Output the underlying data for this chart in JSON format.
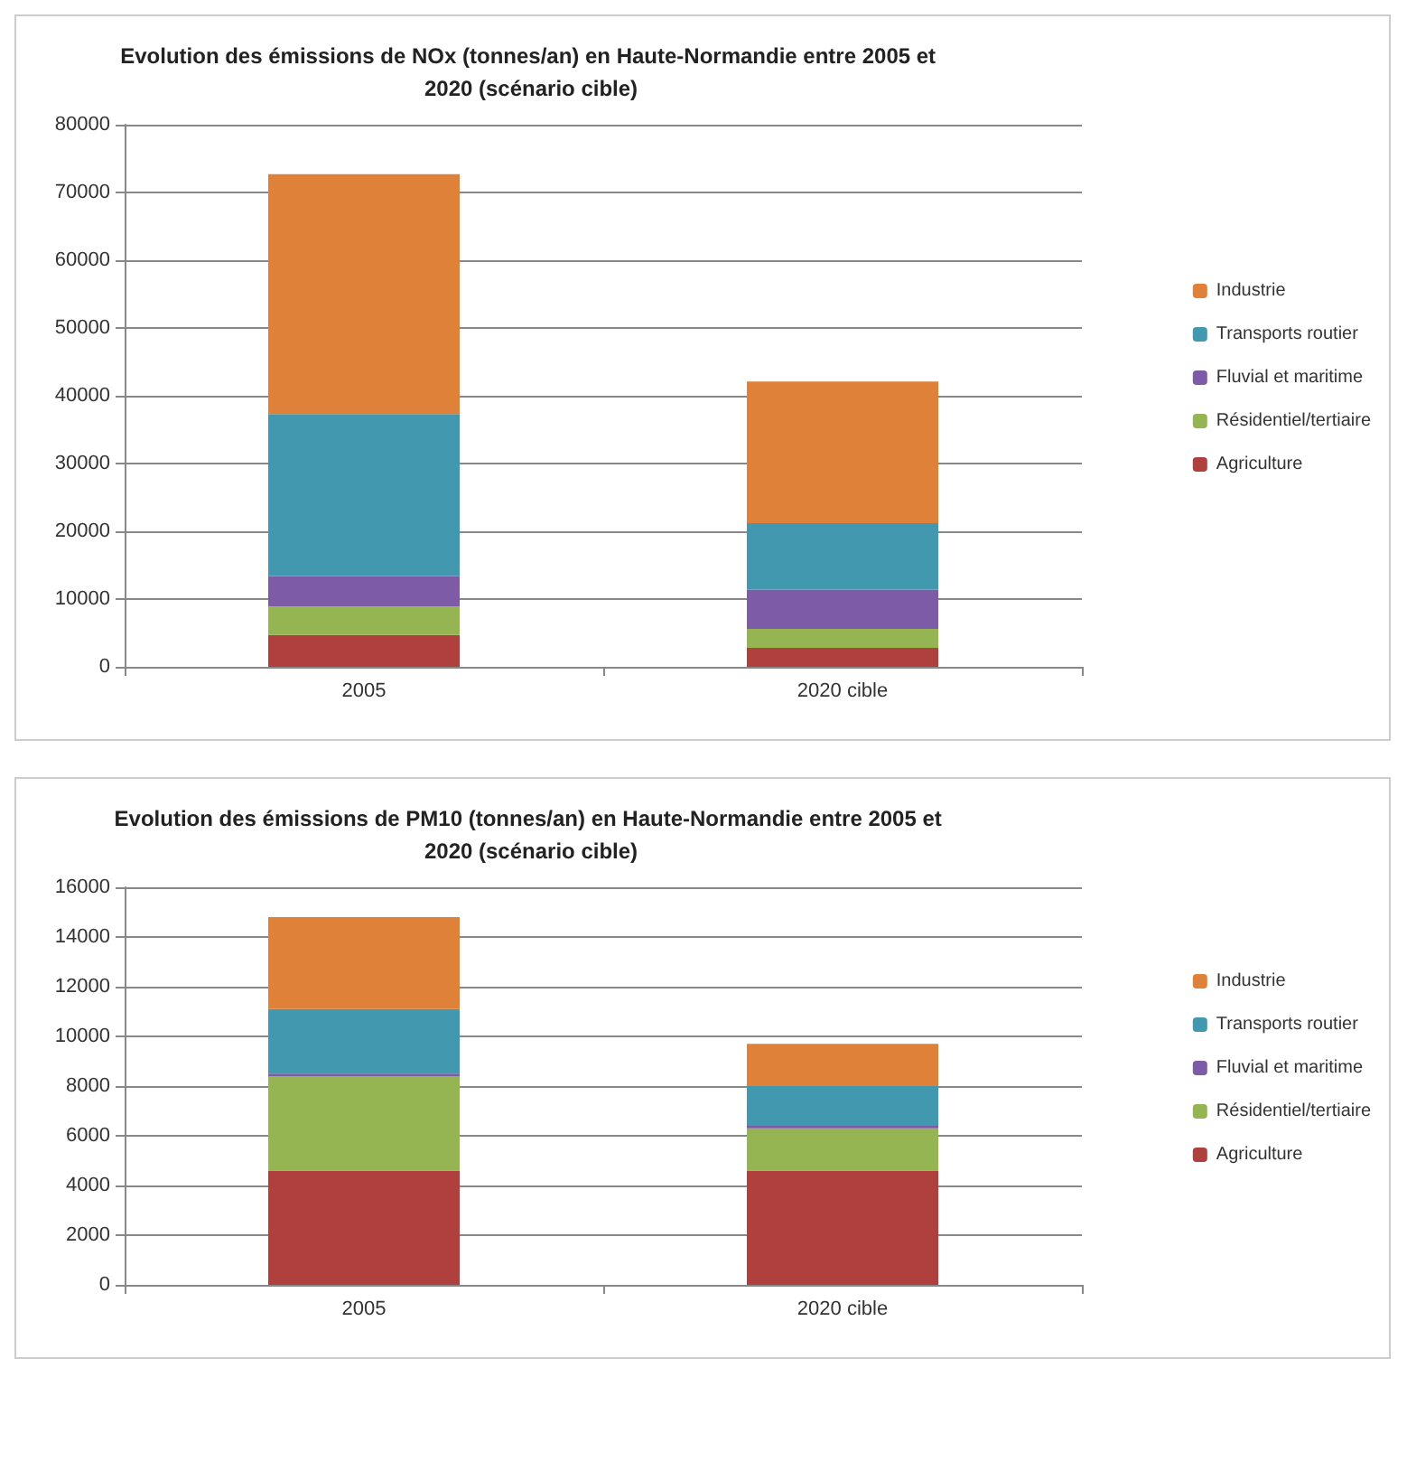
{
  "chart_data": [
    {
      "type": "bar",
      "title": "Evolution des émissions de NOx (tonnes/an) en Haute-Normandie entre 2005 et 2020 (scénario cible)",
      "categories": [
        "2005",
        "2020 cible"
      ],
      "stacked": true,
      "ylim": [
        0,
        80000
      ],
      "yticks": [
        0,
        10000,
        20000,
        30000,
        40000,
        50000,
        60000,
        70000,
        80000
      ],
      "grid": "y",
      "legend": "right",
      "series": [
        {
          "name": "Agriculture",
          "color": "#b0403d",
          "values": [
            4700,
            2800
          ]
        },
        {
          "name": "Résidentiel/tertiaire",
          "color": "#95b552",
          "values": [
            4200,
            2800
          ]
        },
        {
          "name": "Fluvial et maritime",
          "color": "#7d5ba6",
          "values": [
            4500,
            5800
          ]
        },
        {
          "name": "Transports routier",
          "color": "#4198af",
          "values": [
            23900,
            9800
          ]
        },
        {
          "name": "Industrie",
          "color": "#e0813a",
          "values": [
            35400,
            20900
          ]
        }
      ]
    },
    {
      "type": "bar",
      "title": "Evolution des émissions de PM10 (tonnes/an) en Haute-Normandie entre 2005 et 2020 (scénario cible)",
      "categories": [
        "2005",
        "2020 cible"
      ],
      "stacked": true,
      "ylim": [
        0,
        16000
      ],
      "yticks": [
        0,
        2000,
        4000,
        6000,
        8000,
        10000,
        12000,
        14000,
        16000
      ],
      "grid": "y",
      "legend": "right",
      "series": [
        {
          "name": "Agriculture",
          "color": "#b0403d",
          "values": [
            4600,
            4600
          ]
        },
        {
          "name": "Résidentiel/tertiaire",
          "color": "#95b552",
          "values": [
            3800,
            1700
          ]
        },
        {
          "name": "Fluvial et maritime",
          "color": "#7d5ba6",
          "values": [
            100,
            100
          ]
        },
        {
          "name": "Transports routier",
          "color": "#4198af",
          "values": [
            2600,
            1600
          ]
        },
        {
          "name": "Industrie",
          "color": "#e0813a",
          "values": [
            3700,
            1700
          ]
        }
      ]
    }
  ]
}
